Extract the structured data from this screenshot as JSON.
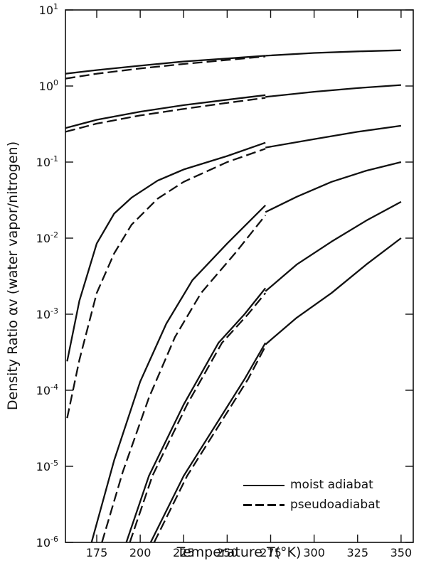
{
  "chart_data": {
    "type": "line",
    "xlabel": "Temperature T(°K)",
    "ylabel": "Density Ratio αv (water vapor/nitrogen)",
    "xlim": [
      157,
      357
    ],
    "ylim": [
      1e-06,
      10
    ],
    "y_scale": "log",
    "x_ticks": [
      "175",
      "200",
      "225",
      "250",
      "275",
      "300",
      "325",
      "350"
    ],
    "y_ticks": [
      {
        "base": "10",
        "exp": "1"
      },
      {
        "base": "10",
        "exp": "0"
      },
      {
        "base": "10",
        "exp": "-1"
      },
      {
        "base": "10",
        "exp": "-2"
      },
      {
        "base": "10",
        "exp": "-3"
      },
      {
        "base": "10",
        "exp": "-4"
      },
      {
        "base": "10",
        "exp": "-5"
      },
      {
        "base": "10",
        "exp": "-6"
      }
    ],
    "legend": {
      "position": "bottom-right",
      "items": [
        {
          "label": "moist adiabat",
          "style": "solid"
        },
        {
          "label": "pseudoadiabat",
          "style": "dashed"
        }
      ]
    },
    "series": [
      {
        "style": "solid",
        "points": [
          [
            157,
            1.45
          ],
          [
            175,
            1.62
          ],
          [
            200,
            1.85
          ],
          [
            225,
            2.1
          ],
          [
            250,
            2.3
          ],
          [
            272,
            2.5
          ]
        ]
      },
      {
        "style": "dashed",
        "points": [
          [
            157,
            1.25
          ],
          [
            175,
            1.45
          ],
          [
            200,
            1.7
          ],
          [
            225,
            1.95
          ],
          [
            250,
            2.2
          ],
          [
            272,
            2.45
          ]
        ]
      },
      {
        "style": "solid",
        "points": [
          [
            272,
            2.5
          ],
          [
            300,
            2.72
          ],
          [
            325,
            2.85
          ],
          [
            350,
            2.95
          ]
        ]
      },
      {
        "style": "solid",
        "points": [
          [
            157,
            0.28
          ],
          [
            175,
            0.36
          ],
          [
            200,
            0.46
          ],
          [
            225,
            0.56
          ],
          [
            250,
            0.66
          ],
          [
            272,
            0.76
          ]
        ]
      },
      {
        "style": "dashed",
        "points": [
          [
            157,
            0.25
          ],
          [
            175,
            0.32
          ],
          [
            200,
            0.41
          ],
          [
            225,
            0.5
          ],
          [
            250,
            0.6
          ],
          [
            272,
            0.7
          ]
        ]
      },
      {
        "style": "solid",
        "points": [
          [
            272,
            0.72
          ],
          [
            300,
            0.84
          ],
          [
            325,
            0.94
          ],
          [
            350,
            1.03
          ]
        ]
      },
      {
        "style": "solid",
        "points": [
          [
            158,
            0.00024
          ],
          [
            165,
            0.0015
          ],
          [
            175,
            0.0085
          ],
          [
            185,
            0.021
          ],
          [
            195,
            0.034
          ],
          [
            210,
            0.057
          ],
          [
            225,
            0.08
          ],
          [
            250,
            0.12
          ],
          [
            272,
            0.18
          ]
        ]
      },
      {
        "style": "dashed",
        "points": [
          [
            158,
            4.3e-05
          ],
          [
            165,
            0.00025
          ],
          [
            175,
            0.0019
          ],
          [
            185,
            0.0063
          ],
          [
            195,
            0.015
          ],
          [
            210,
            0.033
          ],
          [
            225,
            0.055
          ],
          [
            250,
            0.1
          ],
          [
            272,
            0.15
          ]
        ]
      },
      {
        "style": "solid",
        "points": [
          [
            272,
            0.155
          ],
          [
            300,
            0.2
          ],
          [
            325,
            0.25
          ],
          [
            350,
            0.3
          ]
        ]
      },
      {
        "style": "solid",
        "points": [
          [
            172,
            1e-06
          ],
          [
            185,
            1.2e-05
          ],
          [
            200,
            0.00013
          ],
          [
            215,
            0.00075
          ],
          [
            230,
            0.0028
          ],
          [
            250,
            0.0085
          ],
          [
            272,
            0.027
          ]
        ]
      },
      {
        "style": "dashed",
        "points": [
          [
            178,
            1e-06
          ],
          [
            190,
            8.5e-06
          ],
          [
            205,
            8e-05
          ],
          [
            220,
            0.0005
          ],
          [
            235,
            0.0019
          ],
          [
            255,
            0.0065
          ],
          [
            272,
            0.02
          ]
        ]
      },
      {
        "style": "solid",
        "points": [
          [
            272,
            0.022
          ],
          [
            290,
            0.035
          ],
          [
            310,
            0.055
          ],
          [
            330,
            0.077
          ],
          [
            350,
            0.1
          ]
        ]
      },
      {
        "style": "solid",
        "points": [
          [
            192,
            1e-06
          ],
          [
            205,
            7.5e-06
          ],
          [
            225,
            6.5e-05
          ],
          [
            245,
            0.00042
          ],
          [
            260,
            0.001
          ],
          [
            272,
            0.0022
          ]
        ]
      },
      {
        "style": "dashed",
        "points": [
          [
            194,
            1e-06
          ],
          [
            207,
            7.5e-06
          ],
          [
            227,
            6.5e-05
          ],
          [
            247,
            0.00042
          ],
          [
            262,
            0.001
          ],
          [
            272,
            0.0019
          ]
        ]
      },
      {
        "style": "solid",
        "points": [
          [
            272,
            0.002
          ],
          [
            290,
            0.0045
          ],
          [
            310,
            0.009
          ],
          [
            330,
            0.017
          ],
          [
            350,
            0.03
          ]
        ]
      },
      {
        "style": "solid",
        "points": [
          [
            206,
            1e-06
          ],
          [
            225,
            7.5e-06
          ],
          [
            245,
            4e-05
          ],
          [
            260,
            0.00014
          ],
          [
            272,
            0.00042
          ]
        ]
      },
      {
        "style": "dashed",
        "points": [
          [
            208,
            1e-06
          ],
          [
            227,
            7.5e-06
          ],
          [
            247,
            4e-05
          ],
          [
            262,
            0.00014
          ],
          [
            272,
            0.00038
          ]
        ]
      },
      {
        "style": "solid",
        "points": [
          [
            272,
            0.0004
          ],
          [
            290,
            0.0009
          ],
          [
            310,
            0.0019
          ],
          [
            330,
            0.0045
          ],
          [
            350,
            0.01
          ]
        ]
      }
    ]
  }
}
